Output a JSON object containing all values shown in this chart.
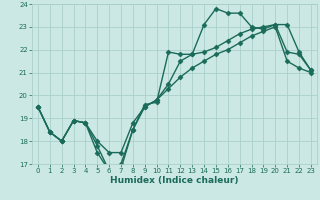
{
  "title": "",
  "xlabel": "Humidex (Indice chaleur)",
  "xlim": [
    -0.5,
    23.5
  ],
  "ylim": [
    17,
    24
  ],
  "yticks": [
    17,
    18,
    19,
    20,
    21,
    22,
    23,
    24
  ],
  "xticks": [
    0,
    1,
    2,
    3,
    4,
    5,
    6,
    7,
    8,
    9,
    10,
    11,
    12,
    13,
    14,
    15,
    16,
    17,
    18,
    19,
    20,
    21,
    22,
    23
  ],
  "bg_color": "#cce8e4",
  "grid_color": "#aacfca",
  "line_color": "#1a6b5a",
  "line1_y": [
    19.5,
    18.4,
    18.0,
    18.9,
    18.8,
    17.5,
    16.7,
    16.8,
    18.5,
    19.6,
    19.7,
    21.9,
    21.8,
    21.8,
    23.1,
    23.8,
    23.6,
    23.6,
    23.0,
    22.9,
    23.1,
    23.1,
    21.9,
    21.1
  ],
  "line2_y": [
    19.5,
    18.4,
    18.0,
    18.9,
    18.8,
    17.8,
    16.7,
    17.0,
    18.5,
    19.5,
    19.8,
    20.5,
    21.5,
    21.8,
    21.9,
    22.1,
    22.4,
    22.7,
    22.9,
    23.0,
    23.1,
    21.9,
    21.8,
    21.1
  ],
  "line3_y": [
    19.5,
    18.4,
    18.0,
    18.9,
    18.8,
    18.0,
    17.5,
    17.5,
    18.8,
    19.5,
    19.8,
    20.3,
    20.8,
    21.2,
    21.5,
    21.8,
    22.0,
    22.3,
    22.6,
    22.8,
    23.0,
    21.5,
    21.2,
    21.0
  ],
  "marker": "D",
  "marker_size": 2.5,
  "line_width": 1.0,
  "tick_fontsize": 5.0,
  "xlabel_fontsize": 6.5
}
